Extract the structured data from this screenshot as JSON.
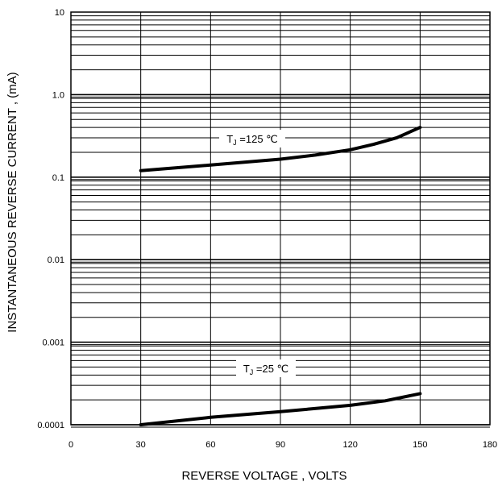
{
  "chart_data": {
    "type": "line",
    "title": "",
    "xlabel": "REVERSE VOLTAGE , VOLTS",
    "ylabel": "INSTANTANEOUS REVERSE CURRENT , (mA)",
    "xlim": [
      0,
      180
    ],
    "ylim": [
      0.0001,
      10
    ],
    "yscale": "log",
    "grid": true,
    "x_ticks": [
      0,
      30,
      60,
      90,
      120,
      150,
      180
    ],
    "x_tick_labels": [
      "0",
      "30",
      "60",
      "90",
      "120",
      "150",
      "180"
    ],
    "y_ticks": [
      0.0001,
      0.001,
      0.01,
      0.1,
      1,
      10
    ],
    "y_tick_labels": [
      "0.0001",
      "0.001",
      "0.01",
      "0.1",
      "1.0",
      "10"
    ],
    "series": [
      {
        "name": "",
        "annotation": {
          "prefix": "T",
          "subscript": "J",
          "text": " =125 ℃"
        },
        "x": [
          30,
          60,
          90,
          105,
          120,
          130,
          140,
          150
        ],
        "y": [
          0.12,
          0.14,
          0.165,
          0.185,
          0.215,
          0.25,
          0.3,
          0.4
        ]
      },
      {
        "name": "",
        "annotation": {
          "prefix": "T",
          "subscript": "J",
          "text": " =25 ℃"
        },
        "x": [
          30,
          60,
          90,
          120,
          135,
          150
        ],
        "y": [
          0.0001,
          0.000123,
          0.000144,
          0.000172,
          0.000195,
          0.000238
        ]
      }
    ]
  }
}
